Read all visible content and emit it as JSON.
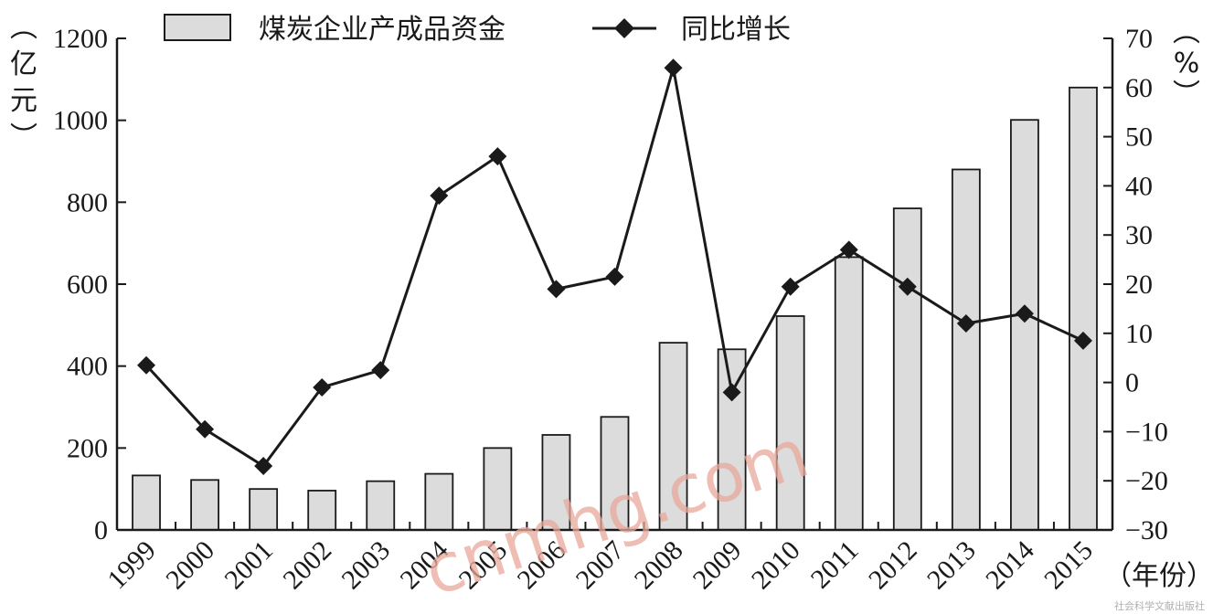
{
  "chart_data": {
    "type": "bar",
    "categories": [
      "1999",
      "2000",
      "2001",
      "2002",
      "2003",
      "2004",
      "2005",
      "2006",
      "2007",
      "2008",
      "2009",
      "2010",
      "2011",
      "2012",
      "2013",
      "2014",
      "2015"
    ],
    "series": [
      {
        "name": "煤炭企业产成品资金",
        "type": "bar",
        "axis": "left",
        "values": [
          133,
          122,
          100,
          96,
          119,
          137,
          200,
          232,
          276,
          457,
          441,
          522,
          666,
          785,
          880,
          1001,
          1080
        ]
      },
      {
        "name": "同比增长",
        "type": "line",
        "axis": "right",
        "marker": "diamond",
        "values": [
          3.5,
          -9.5,
          -17,
          -1,
          2.5,
          38,
          46,
          19,
          21.5,
          64,
          -2,
          19.5,
          27,
          19.5,
          12,
          14,
          8.5
        ]
      }
    ],
    "left_axis": {
      "unit_label": "（亿元）",
      "ylim": [
        0,
        1200
      ],
      "ticks": [
        "0",
        "200",
        "400",
        "600",
        "800",
        "1000",
        "1200"
      ]
    },
    "right_axis": {
      "unit_label": "（%）",
      "ylim": [
        -30,
        70
      ],
      "ticks": [
        "-30",
        "-20",
        "-10",
        "0",
        "10",
        "20",
        "30",
        "40",
        "50",
        "60",
        "70"
      ]
    },
    "x_axis": {
      "unit_label": "（年份）"
    },
    "legend_position": "top",
    "grid": false,
    "colors": {
      "bar_fill": "#dcdcdc",
      "bar_stroke": "#1a1a1a",
      "line": "#1a1a1a",
      "axis": "#1a1a1a"
    }
  },
  "watermark": "cnmhg.com",
  "corner_text": "社会科学文献出版社"
}
